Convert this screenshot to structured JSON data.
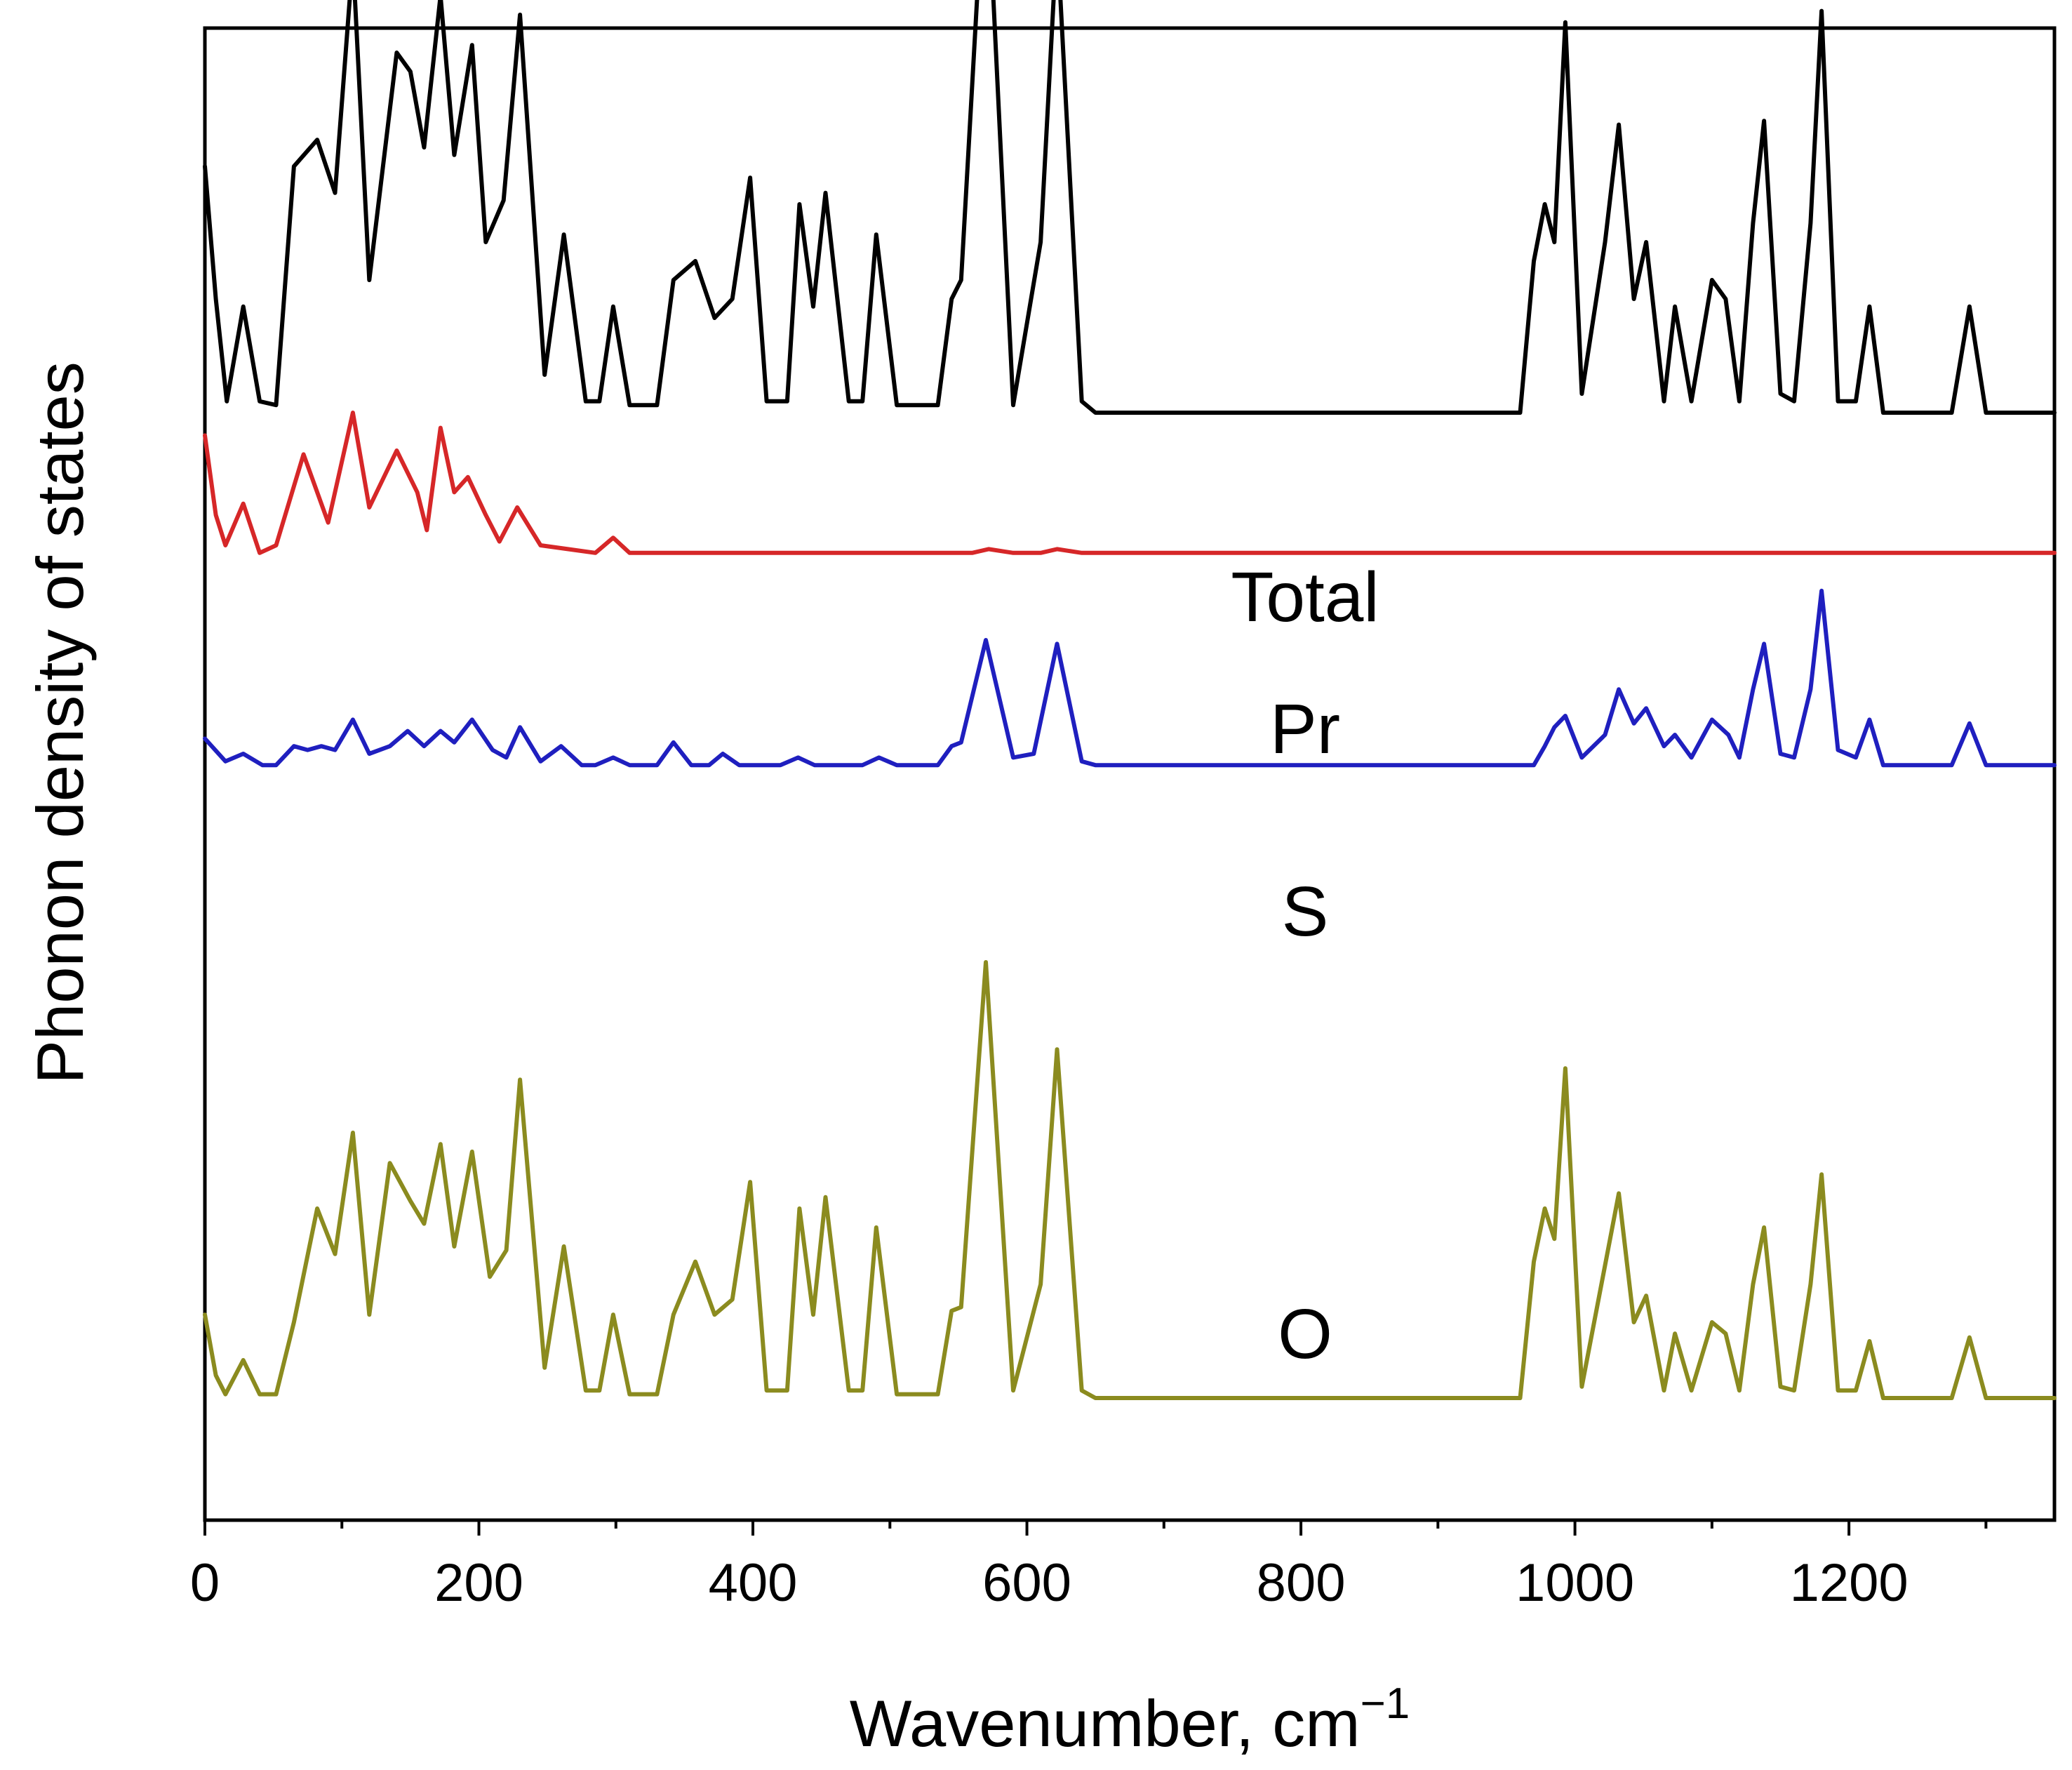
{
  "chart_data": {
    "type": "line",
    "title": "",
    "xlabel": "Wavenumber, cm",
    "xlabel_superscript": "−1",
    "ylabel": "Phonon density of states",
    "xlim": [
      0,
      1350
    ],
    "xticks": [
      0,
      200,
      400,
      600,
      800,
      1000,
      1200
    ],
    "minor_xticks": [
      100,
      300,
      500,
      700,
      900,
      1100,
      1300
    ],
    "y_ticks_shown": false,
    "grid": false,
    "series": [
      {
        "name": "Total",
        "color": "#000000",
        "baseline_offset": 2.6,
        "points": [
          [
            0,
            0.65
          ],
          [
            8,
            0.3
          ],
          [
            16,
            0.03
          ],
          [
            28,
            0.28
          ],
          [
            40,
            0.03
          ],
          [
            52,
            0.02
          ],
          [
            65,
            0.65
          ],
          [
            82,
            0.72
          ],
          [
            95,
            0.58
          ],
          [
            108,
            1.2
          ],
          [
            120,
            0.35
          ],
          [
            140,
            0.95
          ],
          [
            150,
            0.9
          ],
          [
            160,
            0.7
          ],
          [
            172,
            1.1
          ],
          [
            182,
            0.68
          ],
          [
            195,
            0.97
          ],
          [
            205,
            0.45
          ],
          [
            218,
            0.56
          ],
          [
            230,
            1.05
          ],
          [
            248,
            0.1
          ],
          [
            262,
            0.47
          ],
          [
            278,
            0.03
          ],
          [
            288,
            0.03
          ],
          [
            298,
            0.28
          ],
          [
            310,
            0.02
          ],
          [
            330,
            0.02
          ],
          [
            342,
            0.35
          ],
          [
            358,
            0.4
          ],
          [
            372,
            0.25
          ],
          [
            385,
            0.3
          ],
          [
            398,
            0.62
          ],
          [
            410,
            0.03
          ],
          [
            425,
            0.03
          ],
          [
            434,
            0.55
          ],
          [
            444,
            0.28
          ],
          [
            453,
            0.58
          ],
          [
            470,
            0.03
          ],
          [
            480,
            0.03
          ],
          [
            490,
            0.47
          ],
          [
            505,
            0.02
          ],
          [
            535,
            0.02
          ],
          [
            545,
            0.3
          ],
          [
            552,
            0.35
          ],
          [
            570,
            1.5
          ],
          [
            590,
            0.02
          ],
          [
            610,
            0.45
          ],
          [
            622,
            1.26
          ],
          [
            640,
            0.03
          ],
          [
            650,
            0.0
          ],
          [
            960,
            0.0
          ],
          [
            970,
            0.4
          ],
          [
            978,
            0.55
          ],
          [
            985,
            0.45
          ],
          [
            993,
            1.03
          ],
          [
            1005,
            0.05
          ],
          [
            1022,
            0.45
          ],
          [
            1032,
            0.76
          ],
          [
            1043,
            0.3
          ],
          [
            1052,
            0.45
          ],
          [
            1065,
            0.03
          ],
          [
            1073,
            0.28
          ],
          [
            1085,
            0.03
          ],
          [
            1100,
            0.35
          ],
          [
            1110,
            0.3
          ],
          [
            1120,
            0.03
          ],
          [
            1130,
            0.5
          ],
          [
            1138,
            0.77
          ],
          [
            1150,
            0.05
          ],
          [
            1160,
            0.03
          ],
          [
            1172,
            0.5
          ],
          [
            1180,
            1.06
          ],
          [
            1192,
            0.03
          ],
          [
            1205,
            0.03
          ],
          [
            1215,
            0.28
          ],
          [
            1225,
            0.0
          ],
          [
            1275,
            0.0
          ],
          [
            1288,
            0.28
          ],
          [
            1300,
            0.0
          ],
          [
            1350,
            0.0
          ]
        ]
      },
      {
        "name": "Pr",
        "color": "#d62728",
        "baseline_offset": 2.23,
        "points": [
          [
            0,
            0.31
          ],
          [
            8,
            0.1
          ],
          [
            15,
            0.02
          ],
          [
            28,
            0.13
          ],
          [
            40,
            0.0
          ],
          [
            52,
            0.02
          ],
          [
            72,
            0.26
          ],
          [
            90,
            0.08
          ],
          [
            108,
            0.37
          ],
          [
            120,
            0.12
          ],
          [
            140,
            0.27
          ],
          [
            155,
            0.16
          ],
          [
            162,
            0.06
          ],
          [
            172,
            0.33
          ],
          [
            182,
            0.16
          ],
          [
            192,
            0.2
          ],
          [
            205,
            0.1
          ],
          [
            215,
            0.03
          ],
          [
            228,
            0.12
          ],
          [
            245,
            0.02
          ],
          [
            265,
            0.01
          ],
          [
            285,
            0.0
          ],
          [
            298,
            0.04
          ],
          [
            310,
            0.0
          ],
          [
            560,
            0.0
          ],
          [
            572,
            0.01
          ],
          [
            590,
            0.0
          ],
          [
            610,
            0.0
          ],
          [
            622,
            0.01
          ],
          [
            640,
            0.0
          ],
          [
            1350,
            0.0
          ]
        ]
      },
      {
        "name": "S",
        "color": "#1f1fbf",
        "baseline_offset": 1.67,
        "points": [
          [
            0,
            0.07
          ],
          [
            15,
            0.01
          ],
          [
            28,
            0.03
          ],
          [
            42,
            0.0
          ],
          [
            52,
            0.0
          ],
          [
            65,
            0.05
          ],
          [
            75,
            0.04
          ],
          [
            85,
            0.05
          ],
          [
            95,
            0.04
          ],
          [
            108,
            0.12
          ],
          [
            120,
            0.03
          ],
          [
            135,
            0.05
          ],
          [
            148,
            0.09
          ],
          [
            160,
            0.05
          ],
          [
            172,
            0.09
          ],
          [
            182,
            0.06
          ],
          [
            195,
            0.12
          ],
          [
            210,
            0.04
          ],
          [
            220,
            0.02
          ],
          [
            230,
            0.1
          ],
          [
            245,
            0.01
          ],
          [
            260,
            0.05
          ],
          [
            275,
            0.0
          ],
          [
            285,
            0.0
          ],
          [
            298,
            0.02
          ],
          [
            310,
            0.0
          ],
          [
            330,
            0.0
          ],
          [
            342,
            0.06
          ],
          [
            355,
            0.0
          ],
          [
            368,
            0.0
          ],
          [
            378,
            0.03
          ],
          [
            390,
            0.0
          ],
          [
            420,
            0.0
          ],
          [
            433,
            0.02
          ],
          [
            445,
            0.0
          ],
          [
            480,
            0.0
          ],
          [
            492,
            0.02
          ],
          [
            505,
            0.0
          ],
          [
            535,
            0.0
          ],
          [
            545,
            0.05
          ],
          [
            552,
            0.06
          ],
          [
            570,
            0.33
          ],
          [
            590,
            0.02
          ],
          [
            605,
            0.03
          ],
          [
            622,
            0.32
          ],
          [
            640,
            0.01
          ],
          [
            650,
            0.0
          ],
          [
            970,
            0.0
          ],
          [
            978,
            0.05
          ],
          [
            985,
            0.1
          ],
          [
            993,
            0.13
          ],
          [
            1005,
            0.02
          ],
          [
            1022,
            0.08
          ],
          [
            1032,
            0.2
          ],
          [
            1043,
            0.11
          ],
          [
            1052,
            0.15
          ],
          [
            1065,
            0.05
          ],
          [
            1073,
            0.08
          ],
          [
            1085,
            0.02
          ],
          [
            1100,
            0.12
          ],
          [
            1112,
            0.08
          ],
          [
            1120,
            0.02
          ],
          [
            1130,
            0.2
          ],
          [
            1138,
            0.32
          ],
          [
            1150,
            0.03
          ],
          [
            1160,
            0.02
          ],
          [
            1172,
            0.2
          ],
          [
            1180,
            0.46
          ],
          [
            1192,
            0.04
          ],
          [
            1205,
            0.02
          ],
          [
            1215,
            0.12
          ],
          [
            1225,
            0.0
          ],
          [
            1275,
            0.0
          ],
          [
            1288,
            0.11
          ],
          [
            1300,
            0.0
          ],
          [
            1350,
            0.0
          ]
        ]
      },
      {
        "name": "O",
        "color": "#8b8b1f",
        "baseline_offset": 0.0,
        "points": [
          [
            0,
            0.22
          ],
          [
            8,
            0.06
          ],
          [
            15,
            0.01
          ],
          [
            28,
            0.1
          ],
          [
            40,
            0.01
          ],
          [
            52,
            0.01
          ],
          [
            65,
            0.2
          ],
          [
            82,
            0.5
          ],
          [
            95,
            0.38
          ],
          [
            108,
            0.7
          ],
          [
            120,
            0.22
          ],
          [
            135,
            0.62
          ],
          [
            150,
            0.52
          ],
          [
            160,
            0.46
          ],
          [
            172,
            0.67
          ],
          [
            182,
            0.4
          ],
          [
            195,
            0.65
          ],
          [
            208,
            0.32
          ],
          [
            220,
            0.39
          ],
          [
            230,
            0.84
          ],
          [
            248,
            0.08
          ],
          [
            262,
            0.4
          ],
          [
            278,
            0.02
          ],
          [
            288,
            0.02
          ],
          [
            298,
            0.22
          ],
          [
            310,
            0.01
          ],
          [
            330,
            0.01
          ],
          [
            342,
            0.22
          ],
          [
            358,
            0.36
          ],
          [
            372,
            0.22
          ],
          [
            385,
            0.26
          ],
          [
            398,
            0.57
          ],
          [
            410,
            0.02
          ],
          [
            425,
            0.02
          ],
          [
            434,
            0.5
          ],
          [
            444,
            0.22
          ],
          [
            453,
            0.53
          ],
          [
            470,
            0.02
          ],
          [
            480,
            0.02
          ],
          [
            490,
            0.45
          ],
          [
            505,
            0.01
          ],
          [
            535,
            0.01
          ],
          [
            545,
            0.23
          ],
          [
            552,
            0.24
          ],
          [
            570,
            1.15
          ],
          [
            590,
            0.02
          ],
          [
            610,
            0.3
          ],
          [
            622,
            0.92
          ],
          [
            640,
            0.02
          ],
          [
            650,
            0.0
          ],
          [
            960,
            0.0
          ],
          [
            970,
            0.36
          ],
          [
            978,
            0.5
          ],
          [
            985,
            0.42
          ],
          [
            993,
            0.87
          ],
          [
            1005,
            0.03
          ],
          [
            1022,
            0.35
          ],
          [
            1032,
            0.54
          ],
          [
            1043,
            0.2
          ],
          [
            1052,
            0.27
          ],
          [
            1065,
            0.02
          ],
          [
            1073,
            0.17
          ],
          [
            1085,
            0.02
          ],
          [
            1100,
            0.2
          ],
          [
            1110,
            0.17
          ],
          [
            1120,
            0.02
          ],
          [
            1130,
            0.3
          ],
          [
            1138,
            0.45
          ],
          [
            1150,
            0.03
          ],
          [
            1160,
            0.02
          ],
          [
            1172,
            0.3
          ],
          [
            1180,
            0.59
          ],
          [
            1192,
            0.02
          ],
          [
            1205,
            0.02
          ],
          [
            1215,
            0.15
          ],
          [
            1225,
            0.0
          ],
          [
            1275,
            0.0
          ],
          [
            1288,
            0.16
          ],
          [
            1300,
            0.0
          ],
          [
            1350,
            0.0
          ]
        ]
      }
    ],
    "annotations": [
      {
        "text": "Total",
        "series": "Total"
      },
      {
        "text": "Pr",
        "series": "Pr"
      },
      {
        "text": "S",
        "series": "S"
      },
      {
        "text": "O",
        "series": "O"
      }
    ]
  }
}
